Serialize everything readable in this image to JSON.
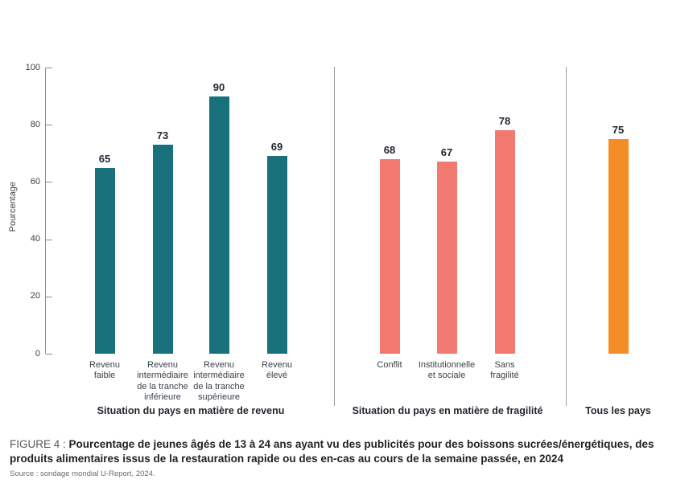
{
  "chart_data": {
    "type": "bar",
    "title": "",
    "xlabel": "",
    "ylabel": "Pourcentage",
    "ylim": [
      0,
      100
    ],
    "yticks": [
      0,
      20,
      40,
      60,
      80,
      100
    ],
    "grid": false,
    "legend": "none",
    "value_labels_shown": true,
    "groups": [
      {
        "title": "Situation du pays en matière de revenu",
        "color": "#17707A",
        "categories": [
          "Revenu faible",
          "Revenu intermédiaire de la tranche inférieure",
          "Revenu intermédiaire de la tranche supérieure",
          "Revenu élevé"
        ],
        "category_lines": [
          [
            "Revenu",
            "faible"
          ],
          [
            "Revenu",
            "intermédiaire",
            "de la tranche",
            "inférieure"
          ],
          [
            "Revenu",
            "intermédiaire",
            "de la tranche",
            "supérieure"
          ],
          [
            "Revenu",
            "élevé"
          ]
        ],
        "values": [
          65,
          73,
          90,
          69
        ]
      },
      {
        "title": "Situation du pays en matière de fragilité",
        "color": "#F2796F",
        "categories": [
          "Conflit",
          "Institutionnelle et sociale",
          "Sans fragilité"
        ],
        "category_lines": [
          [
            "Conflit"
          ],
          [
            "Institutionnelle",
            "et sociale"
          ],
          [
            "Sans",
            "fragilité"
          ]
        ],
        "values": [
          68,
          67,
          78
        ]
      },
      {
        "title": "Tous les pays",
        "color": "#F68C28",
        "categories": [
          ""
        ],
        "category_lines": [
          []
        ],
        "values": [
          75
        ]
      }
    ]
  },
  "caption": {
    "figure_label": "FIGURE 4 : ",
    "text": "Pourcentage de jeunes âgés de 13 à 24 ans ayant vu des publicités pour des boissons sucrées/énergétiques, des produits alimentaires issus de la restauration rapide ou des en-cas au cours de la semaine passée, en 2024"
  },
  "source": "Source : sondage mondial U-Report, 2024."
}
